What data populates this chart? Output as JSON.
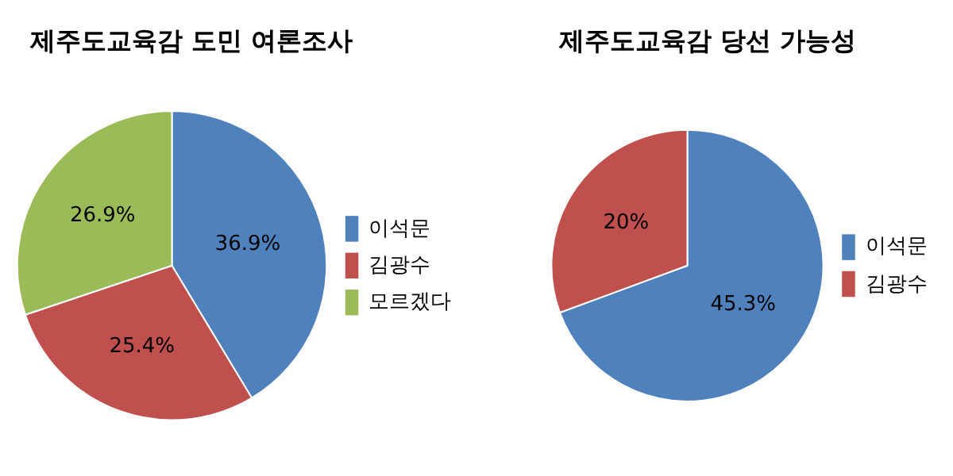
{
  "chart_data": [
    {
      "type": "pie",
      "title": "제주도교육감 도민 여론조사",
      "categories": [
        "이석문",
        "김광수",
        "모르겠다"
      ],
      "values": [
        36.9,
        25.4,
        26.9
      ],
      "value_labels": [
        "36.9%",
        "25.4%",
        "26.9%"
      ],
      "colors": [
        "#4f81bd",
        "#c0504d",
        "#9bbb59"
      ],
      "legend": "right"
    },
    {
      "type": "pie",
      "title": "제주도교육감 당선 가능성",
      "categories": [
        "이석문",
        "김광수"
      ],
      "values": [
        45.3,
        20
      ],
      "value_labels": [
        "45.3%",
        "20%"
      ],
      "colors": [
        "#4f81bd",
        "#c0504d"
      ],
      "legend": "right"
    }
  ]
}
